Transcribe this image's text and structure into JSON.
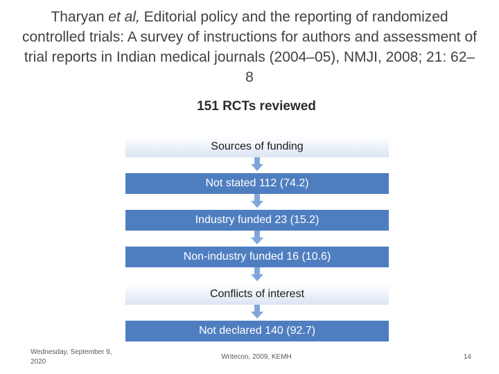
{
  "title": {
    "author": "Tharyan",
    "etal": "et al,",
    "rest": "Editorial policy and the reporting of randomized controlled trials: A survey of instructions for authors and assessment of trial reports in Indian medical journals (2004–05), NMJI, 2008; 21: 62–8"
  },
  "subtitle": "151 RCTs reviewed",
  "flow": {
    "sources": "Sources of funding",
    "not_stated": "Not stated 112 (74.2)",
    "industry": "Industry funded 23 (15.2)",
    "non_industry": "Non-industry funded 16 (10.6)",
    "conflicts": "Conflicts of interest",
    "not_declared": "Not declared 140 (92.7)"
  },
  "colors": {
    "dark_box": "#4f7ec0",
    "light_box": "#dbe5f3",
    "arrow": "#7fa7d9"
  },
  "footer": {
    "date": "Wednesday, September 9, 2020",
    "event": "Writecon, 2009, KEMH",
    "page": "14"
  }
}
